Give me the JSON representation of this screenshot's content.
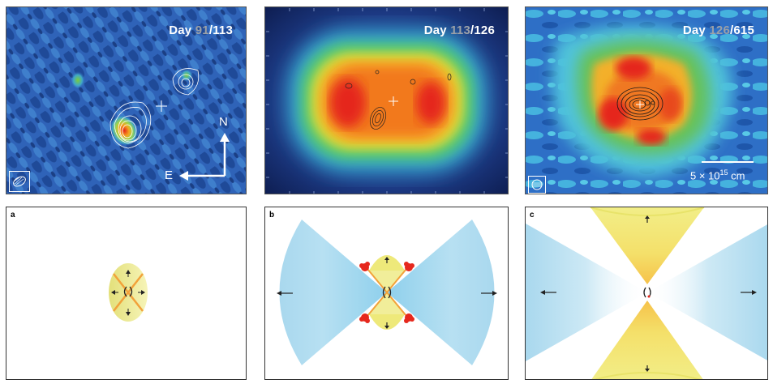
{
  "panels": [
    {
      "prefix": "Day ",
      "highlight": "91",
      "suffix": "/113"
    },
    {
      "prefix": "Day ",
      "highlight": "113",
      "suffix": "/126"
    },
    {
      "prefix": "Day ",
      "highlight": "126",
      "suffix": "/615"
    }
  ],
  "compass": {
    "north": "N",
    "east": "E"
  },
  "scale_bar": {
    "prefix": "5 × 10",
    "exponent": "15",
    "unit": " cm"
  },
  "schematics": [
    {
      "label": "a"
    },
    {
      "label": "b"
    },
    {
      "label": "c"
    }
  ],
  "colors": {
    "map_background": "#2f63b8",
    "peak": "#e8201b",
    "jet": "#a9d8ee",
    "torus": "#eee97a",
    "torus_edge": "#f2a23a",
    "knot": "#e6281d"
  }
}
